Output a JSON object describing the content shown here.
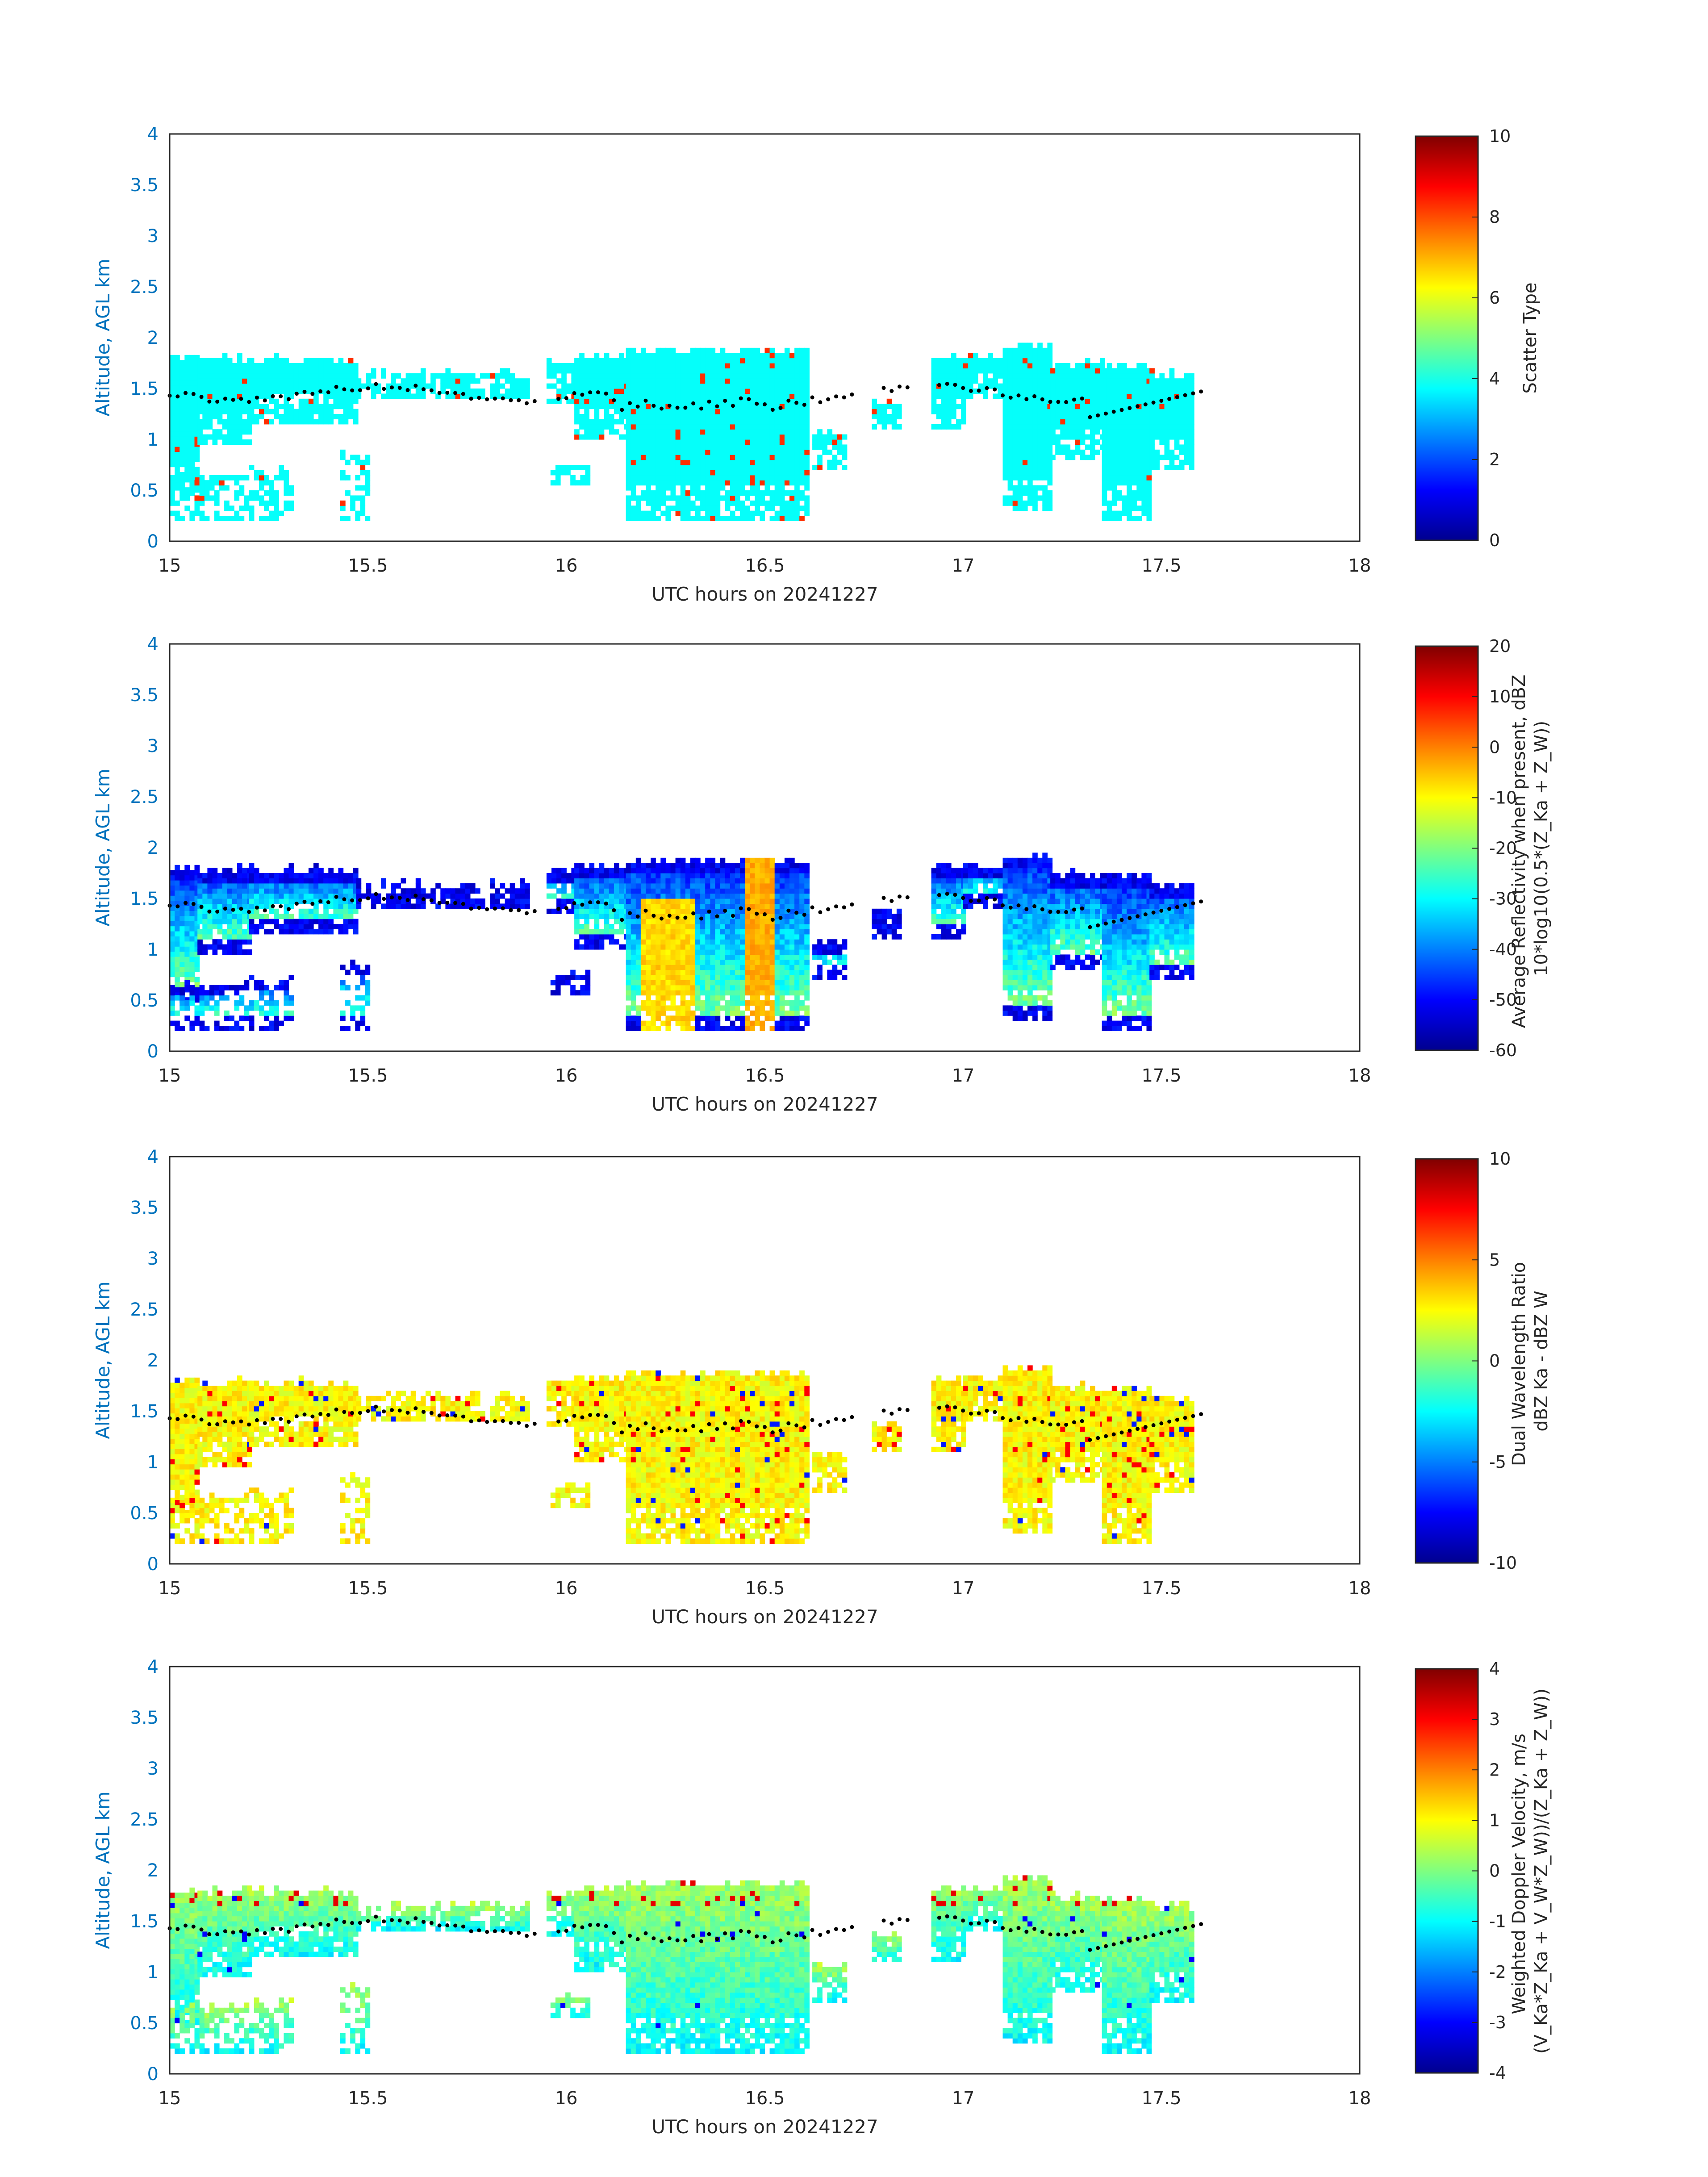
{
  "chart_data": [
    {
      "type": "heatmap",
      "xlabel": "UTC hours on 20241227",
      "ylabel": "Altitude, AGL km",
      "xlim": [
        15,
        18
      ],
      "ylim": [
        0,
        4
      ],
      "xticks": [
        "15",
        "15.5",
        "16",
        "16.5",
        "17",
        "17.5",
        "18"
      ],
      "yticks": [
        "0",
        "0.5",
        "1",
        "1.5",
        "2",
        "2.5",
        "3",
        "3.5",
        "4"
      ],
      "colorbar": {
        "label_lines": [
          "Scatter Type"
        ],
        "range": [
          0,
          10
        ],
        "ticks": [
          "0",
          "2",
          "4",
          "6",
          "8",
          "10"
        ],
        "colormap": "jet"
      },
      "field": "scatter",
      "cell_value_dominant": 3.8,
      "cell_value_secondary": 8.3
    },
    {
      "type": "heatmap",
      "xlabel": "UTC hours on 20241227",
      "ylabel": "Altitude, AGL km",
      "xlim": [
        15,
        18
      ],
      "ylim": [
        0,
        4
      ],
      "xticks": [
        "15",
        "15.5",
        "16",
        "16.5",
        "17",
        "17.5",
        "18"
      ],
      "yticks": [
        "0",
        "0.5",
        "1",
        "1.5",
        "2",
        "2.5",
        "3",
        "3.5",
        "4"
      ],
      "colorbar": {
        "label_lines": [
          "Average Reflectivity when present, dBZ",
          "10*log10(0.5*(Z_Ka + Z_W))"
        ],
        "range": [
          -60,
          20
        ],
        "ticks": [
          "-60",
          "-50",
          "-40",
          "-30",
          "-20",
          "-10",
          "0",
          "10",
          "20"
        ],
        "colormap": "jet"
      },
      "field": "reflectivity"
    },
    {
      "type": "heatmap",
      "xlabel": "UTC hours on 20241227",
      "ylabel": "Altitude, AGL km",
      "xlim": [
        15,
        18
      ],
      "ylim": [
        0,
        4
      ],
      "xticks": [
        "15",
        "15.5",
        "16",
        "16.5",
        "17",
        "17.5",
        "18"
      ],
      "yticks": [
        "0",
        "0.5",
        "1",
        "1.5",
        "2",
        "2.5",
        "3",
        "3.5",
        "4"
      ],
      "colorbar": {
        "label_lines": [
          "Dual Wavelength Ratio",
          "dBZ Ka - dBZ W"
        ],
        "range": [
          -10,
          10
        ],
        "ticks": [
          "-10",
          "-5",
          "0",
          "5",
          "10"
        ],
        "colormap": "jet"
      },
      "field": "dwr"
    },
    {
      "type": "heatmap",
      "xlabel": "UTC hours on 20241227",
      "ylabel": "Altitude, AGL km",
      "xlim": [
        15,
        18
      ],
      "ylim": [
        0,
        4
      ],
      "xticks": [
        "15",
        "15.5",
        "16",
        "16.5",
        "17",
        "17.5",
        "18"
      ],
      "yticks": [
        "0",
        "0.5",
        "1",
        "1.5",
        "2",
        "2.5",
        "3",
        "3.5",
        "4"
      ],
      "colorbar": {
        "label_lines": [
          "Weighted Doppler Velocity, m/s",
          "(V_Ka*Z_Ka + V_W*Z_W))/(Z_Ka + Z_W))"
        ],
        "range": [
          -4,
          4
        ],
        "ticks": [
          "-4",
          "-3",
          "-2",
          "-1",
          "0",
          "1",
          "2",
          "3",
          "4"
        ],
        "colormap": "jet"
      },
      "field": "velocity"
    }
  ],
  "echo_segments": [
    {
      "x": [
        15.0,
        15.07
      ],
      "top": 1.78,
      "base": 0.48
    },
    {
      "x": [
        15.07,
        15.2
      ],
      "top": 1.76,
      "base": 0.95
    },
    {
      "x": [
        15.2,
        15.47
      ],
      "top": 1.76,
      "base": 1.15
    },
    {
      "x": [
        15.47,
        15.9
      ],
      "top": 1.62,
      "base": 1.4
    },
    {
      "x": [
        15.95,
        16.02
      ],
      "top": 1.75,
      "base": 1.35
    },
    {
      "x": [
        16.02,
        16.15
      ],
      "top": 1.8,
      "base": 1.0
    },
    {
      "x": [
        16.15,
        16.6
      ],
      "top": 1.85,
      "base": 0.2
    },
    {
      "x": [
        16.62,
        16.7
      ],
      "top": 1.05,
      "base": 0.7
    },
    {
      "x": [
        16.77,
        16.84
      ],
      "top": 1.35,
      "base": 1.1
    },
    {
      "x": [
        16.92,
        17.0
      ],
      "top": 1.78,
      "base": 1.1
    },
    {
      "x": [
        17.0,
        17.1
      ],
      "top": 1.8,
      "base": 1.4
    },
    {
      "x": [
        17.1,
        17.22
      ],
      "top": 1.9,
      "base": 0.3
    },
    {
      "x": [
        17.22,
        17.35
      ],
      "top": 1.72,
      "base": 0.8
    },
    {
      "x": [
        17.35,
        17.47
      ],
      "top": 1.7,
      "base": 0.2
    },
    {
      "x": [
        17.47,
        17.58
      ],
      "top": 1.62,
      "base": 0.7
    }
  ],
  "low_echo_segments": [
    {
      "x": [
        15.0,
        15.2
      ],
      "top": 0.65,
      "base": 0.2
    },
    {
      "x": [
        15.2,
        15.3
      ],
      "top": 0.7,
      "base": 0.2
    },
    {
      "x": [
        15.43,
        15.5
      ],
      "top": 0.85,
      "base": 0.2
    },
    {
      "x": [
        15.96,
        16.05
      ],
      "top": 0.75,
      "base": 0.55
    }
  ],
  "cloud_base_points": {
    "x_start": 15.0,
    "x_end": 17.6,
    "step": 0.02,
    "gaps": [
      [
        15.92,
        15.97
      ],
      [
        16.72,
        16.78
      ],
      [
        16.86,
        16.92
      ]
    ]
  }
}
